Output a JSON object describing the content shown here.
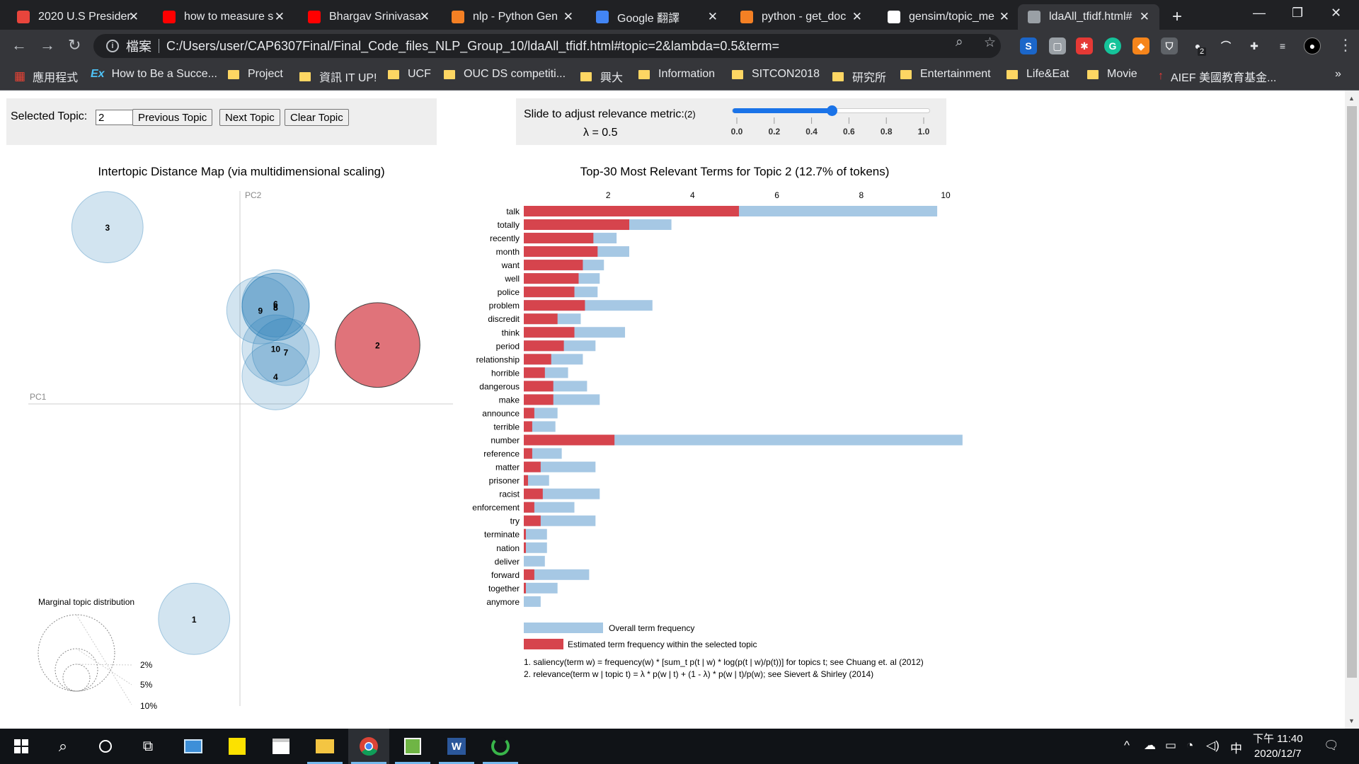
{
  "browser": {
    "tabs": [
      {
        "title": "2020 U.S Presider",
        "icon": "s-icon",
        "color": "#e8453c"
      },
      {
        "title": "how to measure s",
        "icon": "youtube-icon",
        "color": "#ff0000"
      },
      {
        "title": "Bhargav Srinivasa",
        "icon": "youtube-icon",
        "color": "#ff0000"
      },
      {
        "title": "nlp - Python Gen",
        "icon": "stackoverflow-icon",
        "color": "#f48024"
      },
      {
        "title": "Google 翻譯",
        "icon": "google-translate-icon",
        "color": "#4285f4"
      },
      {
        "title": "python - get_doc",
        "icon": "stackoverflow-icon",
        "color": "#f48024"
      },
      {
        "title": "gensim/topic_me",
        "icon": "github-icon",
        "color": "#ffffff"
      },
      {
        "title": "ldaAll_tfidf.html#",
        "icon": "page-icon",
        "color": "#9aa0a6",
        "active": true
      }
    ],
    "address_scheme_label": "檔案",
    "address_url": "C:/Users/user/CAP6307Final/Final_Code_files_NLP_Group_10/ldaAll_tfidf.html#topic=2&lambda=0.5&term=",
    "extension_badge": "2",
    "bookmarks": [
      {
        "label": "應用程式",
        "icon": "apps-grid-icon"
      },
      {
        "label": "How to Be a Succe...",
        "icon": "ex-icon"
      },
      {
        "label": "Project",
        "icon": "folder-icon"
      },
      {
        "label": "資訊 IT UP!",
        "icon": "folder-icon"
      },
      {
        "label": "UCF",
        "icon": "folder-icon"
      },
      {
        "label": "OUC DS competiti...",
        "icon": "folder-icon"
      },
      {
        "label": "興大",
        "icon": "folder-icon"
      },
      {
        "label": "Information",
        "icon": "folder-icon"
      },
      {
        "label": "SITCON2018",
        "icon": "folder-icon"
      },
      {
        "label": "研究所",
        "icon": "folder-icon"
      },
      {
        "label": "Entertainment",
        "icon": "folder-icon"
      },
      {
        "label": "Life&Eat",
        "icon": "folder-icon"
      },
      {
        "label": "Movie",
        "icon": "folder-icon"
      },
      {
        "label": "AIEF 美國教育基金...",
        "icon": "torch-icon"
      }
    ],
    "bookmarks_overflow": "»"
  },
  "controls": {
    "selected_topic_label": "Selected Topic:",
    "selected_topic_value": "2",
    "prev_label": "Previous Topic",
    "next_label": "Next Topic",
    "clear_label": "Clear Topic",
    "slider_label": "Slide to adjust relevance metric:",
    "slider_footnote": "(2)",
    "lambda_text": "λ = 0.5",
    "lambda_value": 0.5,
    "slider_ticks": [
      "0.0",
      "0.2",
      "0.4",
      "0.6",
      "0.8",
      "1.0"
    ]
  },
  "chart_data": [
    {
      "type": "scatter",
      "title": "Intertopic Distance Map (via multidimensional scaling)",
      "xlabel": "PC1",
      "ylabel": "PC2",
      "topics": [
        {
          "id": "1",
          "x": -0.09,
          "y": -0.62,
          "size": 0.09,
          "selected": false
        },
        {
          "id": "2",
          "x": 0.27,
          "y": 0.17,
          "size": 0.127,
          "selected": true
        },
        {
          "id": "3",
          "x": -0.26,
          "y": 0.51,
          "size": 0.09,
          "selected": false
        },
        {
          "id": "4",
          "x": 0.07,
          "y": 0.08,
          "size": 0.08,
          "selected": false
        },
        {
          "id": "5",
          "x": 0.07,
          "y": 0.28,
          "size": 0.08,
          "selected": false
        },
        {
          "id": "6",
          "x": 0.07,
          "y": 0.29,
          "size": 0.08,
          "selected": false
        },
        {
          "id": "7",
          "x": 0.09,
          "y": 0.15,
          "size": 0.08,
          "selected": false
        },
        {
          "id": "8",
          "x": 0.07,
          "y": 0.28,
          "size": 0.08,
          "selected": false
        },
        {
          "id": "9",
          "x": 0.04,
          "y": 0.27,
          "size": 0.08,
          "selected": false
        },
        {
          "id": "10",
          "x": 0.07,
          "y": 0.16,
          "size": 0.08,
          "selected": false
        }
      ],
      "marginal_label": "Marginal topic distribution",
      "marginal_legend": [
        "2%",
        "5%",
        "10%"
      ]
    },
    {
      "type": "bar",
      "title": "Top-30 Most Relevant Terms for Topic 2 (12.7% of tokens)",
      "xticks": [
        "2",
        "4",
        "6",
        "8",
        "10"
      ],
      "xlim": [
        0,
        10.5
      ],
      "categories": [
        "talk",
        "totally",
        "recently",
        "month",
        "want",
        "well",
        "police",
        "problem",
        "discredit",
        "think",
        "period",
        "relationship",
        "horrible",
        "dangerous",
        "make",
        "announce",
        "terrible",
        "number",
        "reference",
        "matter",
        "prisoner",
        "racist",
        "enforcement",
        "try",
        "terminate",
        "nation",
        "deliver",
        "forward",
        "together",
        "anymore"
      ],
      "series": [
        {
          "name": "Overall term frequency",
          "color": "#a6c8e4",
          "values": [
            9.8,
            3.5,
            2.2,
            2.5,
            1.9,
            1.8,
            1.75,
            3.05,
            1.35,
            2.4,
            1.7,
            1.4,
            1.05,
            1.5,
            1.8,
            0.8,
            0.75,
            10.4,
            0.9,
            1.7,
            0.6,
            1.8,
            1.2,
            1.7,
            0.55,
            0.55,
            0.5,
            1.55,
            0.8,
            0.4
          ]
        },
        {
          "name": "Estimated term frequency within the selected topic",
          "color": "#d6444d",
          "values": [
            5.1,
            2.5,
            1.65,
            1.75,
            1.4,
            1.3,
            1.2,
            1.45,
            0.8,
            1.2,
            0.95,
            0.65,
            0.5,
            0.7,
            0.7,
            0.25,
            0.2,
            2.15,
            0.2,
            0.4,
            0.1,
            0.45,
            0.25,
            0.4,
            0.05,
            0.05,
            0.0,
            0.25,
            0.05,
            0.0
          ]
        }
      ],
      "legend": [
        "Overall term frequency",
        "Estimated term frequency within the selected topic"
      ],
      "footnotes": [
        "1. saliency(term w) = frequency(w) * [sum_t p(t | w) * log(p(t | w)/p(t))] for topics t; see Chuang et. al (2012)",
        "2. relevance(term w | topic t) = λ * p(w | t) + (1 - λ) * p(w | t)/p(w); see Sievert & Shirley (2014)"
      ]
    }
  ],
  "taskbar": {
    "apps": [
      "start-icon",
      "search-icon",
      "cortana-icon",
      "task-view-icon",
      "control-panel-icon",
      "sticky-notes-icon",
      "store-icon",
      "file-explorer-icon",
      "chrome-icon",
      "paint-icon",
      "word-icon",
      "loading-ring-icon"
    ],
    "ime": "中",
    "time": "下午 11:40",
    "date": "2020/12/7"
  }
}
